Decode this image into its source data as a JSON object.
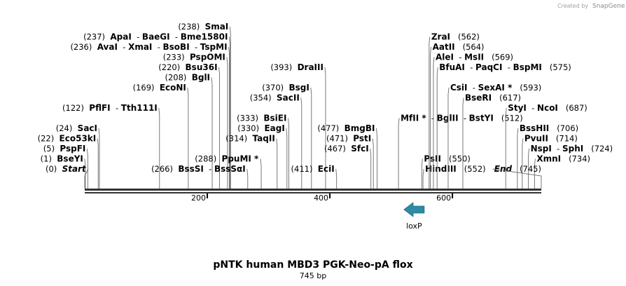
{
  "credit": {
    "prefix": "Created by",
    "brand": "SnapGene"
  },
  "title": "pNTK human MBD3 PGK-Neo-pA flox",
  "subtitle": "745 bp",
  "sequence_length": 745,
  "ruler": {
    "ticks": [
      200,
      400,
      600
    ]
  },
  "feature": {
    "name": "loxP",
    "start": 521,
    "end": 554,
    "direction": "reverse",
    "color": "#2f8aa3"
  },
  "sites": [
    {
      "pos": 0,
      "label": "(0)",
      "names": [
        "Start"
      ],
      "italic": true,
      "row": 0,
      "side": "left"
    },
    {
      "pos": 1,
      "label": "(1)",
      "names": [
        "BseYI"
      ],
      "row": 1,
      "side": "left"
    },
    {
      "pos": 5,
      "label": "(5)",
      "names": [
        "PspFI"
      ],
      "row": 2,
      "side": "left"
    },
    {
      "pos": 22,
      "label": "(22)",
      "names": [
        "Eco53kI"
      ],
      "row": 3,
      "side": "left"
    },
    {
      "pos": 24,
      "label": "(24)",
      "names": [
        "SacI"
      ],
      "row": 4,
      "side": "left"
    },
    {
      "pos": 122,
      "label": "(122)",
      "names": [
        "PflFI",
        "Tth111I"
      ],
      "row": 6,
      "side": "left"
    },
    {
      "pos": 169,
      "label": "(169)",
      "names": [
        "EcoNI"
      ],
      "row": 8,
      "side": "left"
    },
    {
      "pos": 208,
      "label": "(208)",
      "names": [
        "BglI"
      ],
      "row": 9,
      "side": "left"
    },
    {
      "pos": 220,
      "label": "(220)",
      "names": [
        "Bsu36I"
      ],
      "row": 10,
      "side": "left"
    },
    {
      "pos": 233,
      "label": "(233)",
      "names": [
        "PspOMI"
      ],
      "row": 11,
      "side": "left"
    },
    {
      "pos": 236,
      "label": "(236)",
      "names": [
        "AvaI",
        "XmaI",
        "BsoBI",
        "TspMI"
      ],
      "row": 12,
      "side": "left"
    },
    {
      "pos": 237,
      "label": "(237)",
      "names": [
        "ApaI",
        "BaeGI",
        "Bme1580I"
      ],
      "row": 13,
      "side": "left"
    },
    {
      "pos": 238,
      "label": "(238)",
      "names": [
        "SmaI"
      ],
      "row": 14,
      "side": "left"
    },
    {
      "pos": 266,
      "label": "(266)",
      "names": [
        "BssSI",
        "BssSαI"
      ],
      "row": 0,
      "side": "left"
    },
    {
      "pos": 288,
      "label": "(288)",
      "names": [
        "PpuMI *"
      ],
      "row": 1,
      "side": "left"
    },
    {
      "pos": 314,
      "label": "(314)",
      "names": [
        "TaqII"
      ],
      "row": 3,
      "side": "left"
    },
    {
      "pos": 330,
      "label": "(330)",
      "names": [
        "EagI"
      ],
      "row": 4,
      "side": "left"
    },
    {
      "pos": 333,
      "label": "(333)",
      "names": [
        "BsiEI"
      ],
      "row": 5,
      "side": "left"
    },
    {
      "pos": 354,
      "label": "(354)",
      "names": [
        "SacII"
      ],
      "row": 7,
      "side": "left"
    },
    {
      "pos": 370,
      "label": "(370)",
      "names": [
        "BsgI"
      ],
      "row": 8,
      "side": "left"
    },
    {
      "pos": 393,
      "label": "(393)",
      "names": [
        "DraIII"
      ],
      "row": 10,
      "side": "left"
    },
    {
      "pos": 411,
      "label": "(411)",
      "names": [
        "EciI"
      ],
      "row": 0,
      "side": "left"
    },
    {
      "pos": 467,
      "label": "(467)",
      "names": [
        "SfcI"
      ],
      "row": 2,
      "side": "left"
    },
    {
      "pos": 471,
      "label": "(471)",
      "names": [
        "PstI"
      ],
      "row": 3,
      "side": "left"
    },
    {
      "pos": 477,
      "label": "(477)",
      "names": [
        "BmgBI"
      ],
      "row": 4,
      "side": "left"
    },
    {
      "pos": 512,
      "label": "(512)",
      "names": [
        "MfII *",
        "BglII",
        "BstYI"
      ],
      "row": 5,
      "side": "right"
    },
    {
      "pos": 550,
      "label": "(550)",
      "names": [
        "PsII"
      ],
      "row": 1,
      "side": "right"
    },
    {
      "pos": 552,
      "label": "(552)",
      "names": [
        "HindIII"
      ],
      "row": 0,
      "side": "right"
    },
    {
      "pos": 562,
      "label": "(562)",
      "names": [
        "ZraI"
      ],
      "row": 13,
      "side": "right"
    },
    {
      "pos": 564,
      "label": "(564)",
      "names": [
        "AatII"
      ],
      "row": 12,
      "side": "right"
    },
    {
      "pos": 569,
      "label": "(569)",
      "names": [
        "AleI",
        "MsII"
      ],
      "row": 11,
      "side": "right"
    },
    {
      "pos": 575,
      "label": "(575)",
      "names": [
        "BfuAI",
        "PaqCI",
        "BspMI"
      ],
      "row": 10,
      "side": "right"
    },
    {
      "pos": 593,
      "label": "(593)",
      "names": [
        "CsiI",
        "SexAI *"
      ],
      "row": 8,
      "side": "right"
    },
    {
      "pos": 617,
      "label": "(617)",
      "names": [
        "BseRI"
      ],
      "row": 7,
      "side": "right"
    },
    {
      "pos": 687,
      "label": "(687)",
      "names": [
        "StyI",
        "NcoI"
      ],
      "row": 6,
      "side": "right"
    },
    {
      "pos": 706,
      "label": "(706)",
      "names": [
        "BssHII"
      ],
      "row": 4,
      "side": "right"
    },
    {
      "pos": 714,
      "label": "(714)",
      "names": [
        "PvuII"
      ],
      "row": 3,
      "side": "right"
    },
    {
      "pos": 724,
      "label": "(724)",
      "names": [
        "NspI",
        "SphI"
      ],
      "row": 2,
      "side": "right"
    },
    {
      "pos": 734,
      "label": "(734)",
      "names": [
        "XmnI"
      ],
      "row": 1,
      "side": "right"
    },
    {
      "pos": 745,
      "label": "(745)",
      "names": [
        "End"
      ],
      "italic": true,
      "row": 0,
      "side": "right"
    }
  ]
}
